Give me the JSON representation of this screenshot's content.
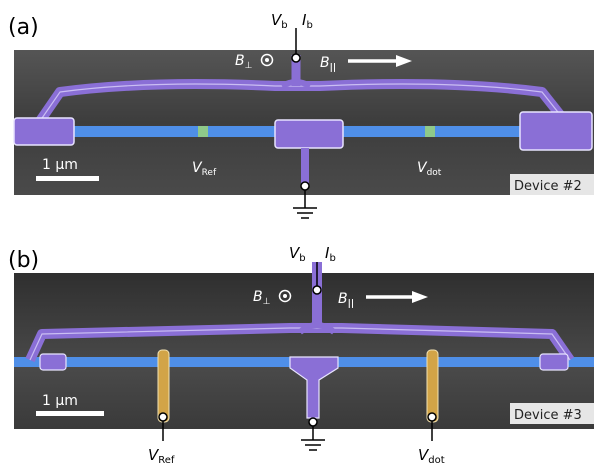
{
  "panels": [
    {
      "label": "(a)",
      "vb": "V",
      "vb_sub": "b",
      "ib": "I",
      "ib_sub": "b",
      "bperp": "B",
      "bperp_sub": "⊥",
      "bpar": "B",
      "bpar_sub": "||",
      "vref": "V",
      "vref_sub": "Ref",
      "vdot": "V",
      "vdot_sub": "dot",
      "scale": "1 μm",
      "device": "Device #2"
    },
    {
      "label": "(b)",
      "vb": "V",
      "vb_sub": "b",
      "ib": "I",
      "ib_sub": "b",
      "bperp": "B",
      "bperp_sub": "⊥",
      "bpar": "B",
      "bpar_sub": "||",
      "vref": "V",
      "vref_sub": "Ref",
      "vdot": "V",
      "vdot_sub": "dot",
      "scale": "1 μm",
      "device": "Device #3"
    }
  ],
  "colors": {
    "sem_bg": "#404040",
    "purple": "#8a6fd6",
    "blue": "#4f8fe8",
    "gold": "#d2a447",
    "green": "#8fc98a"
  }
}
